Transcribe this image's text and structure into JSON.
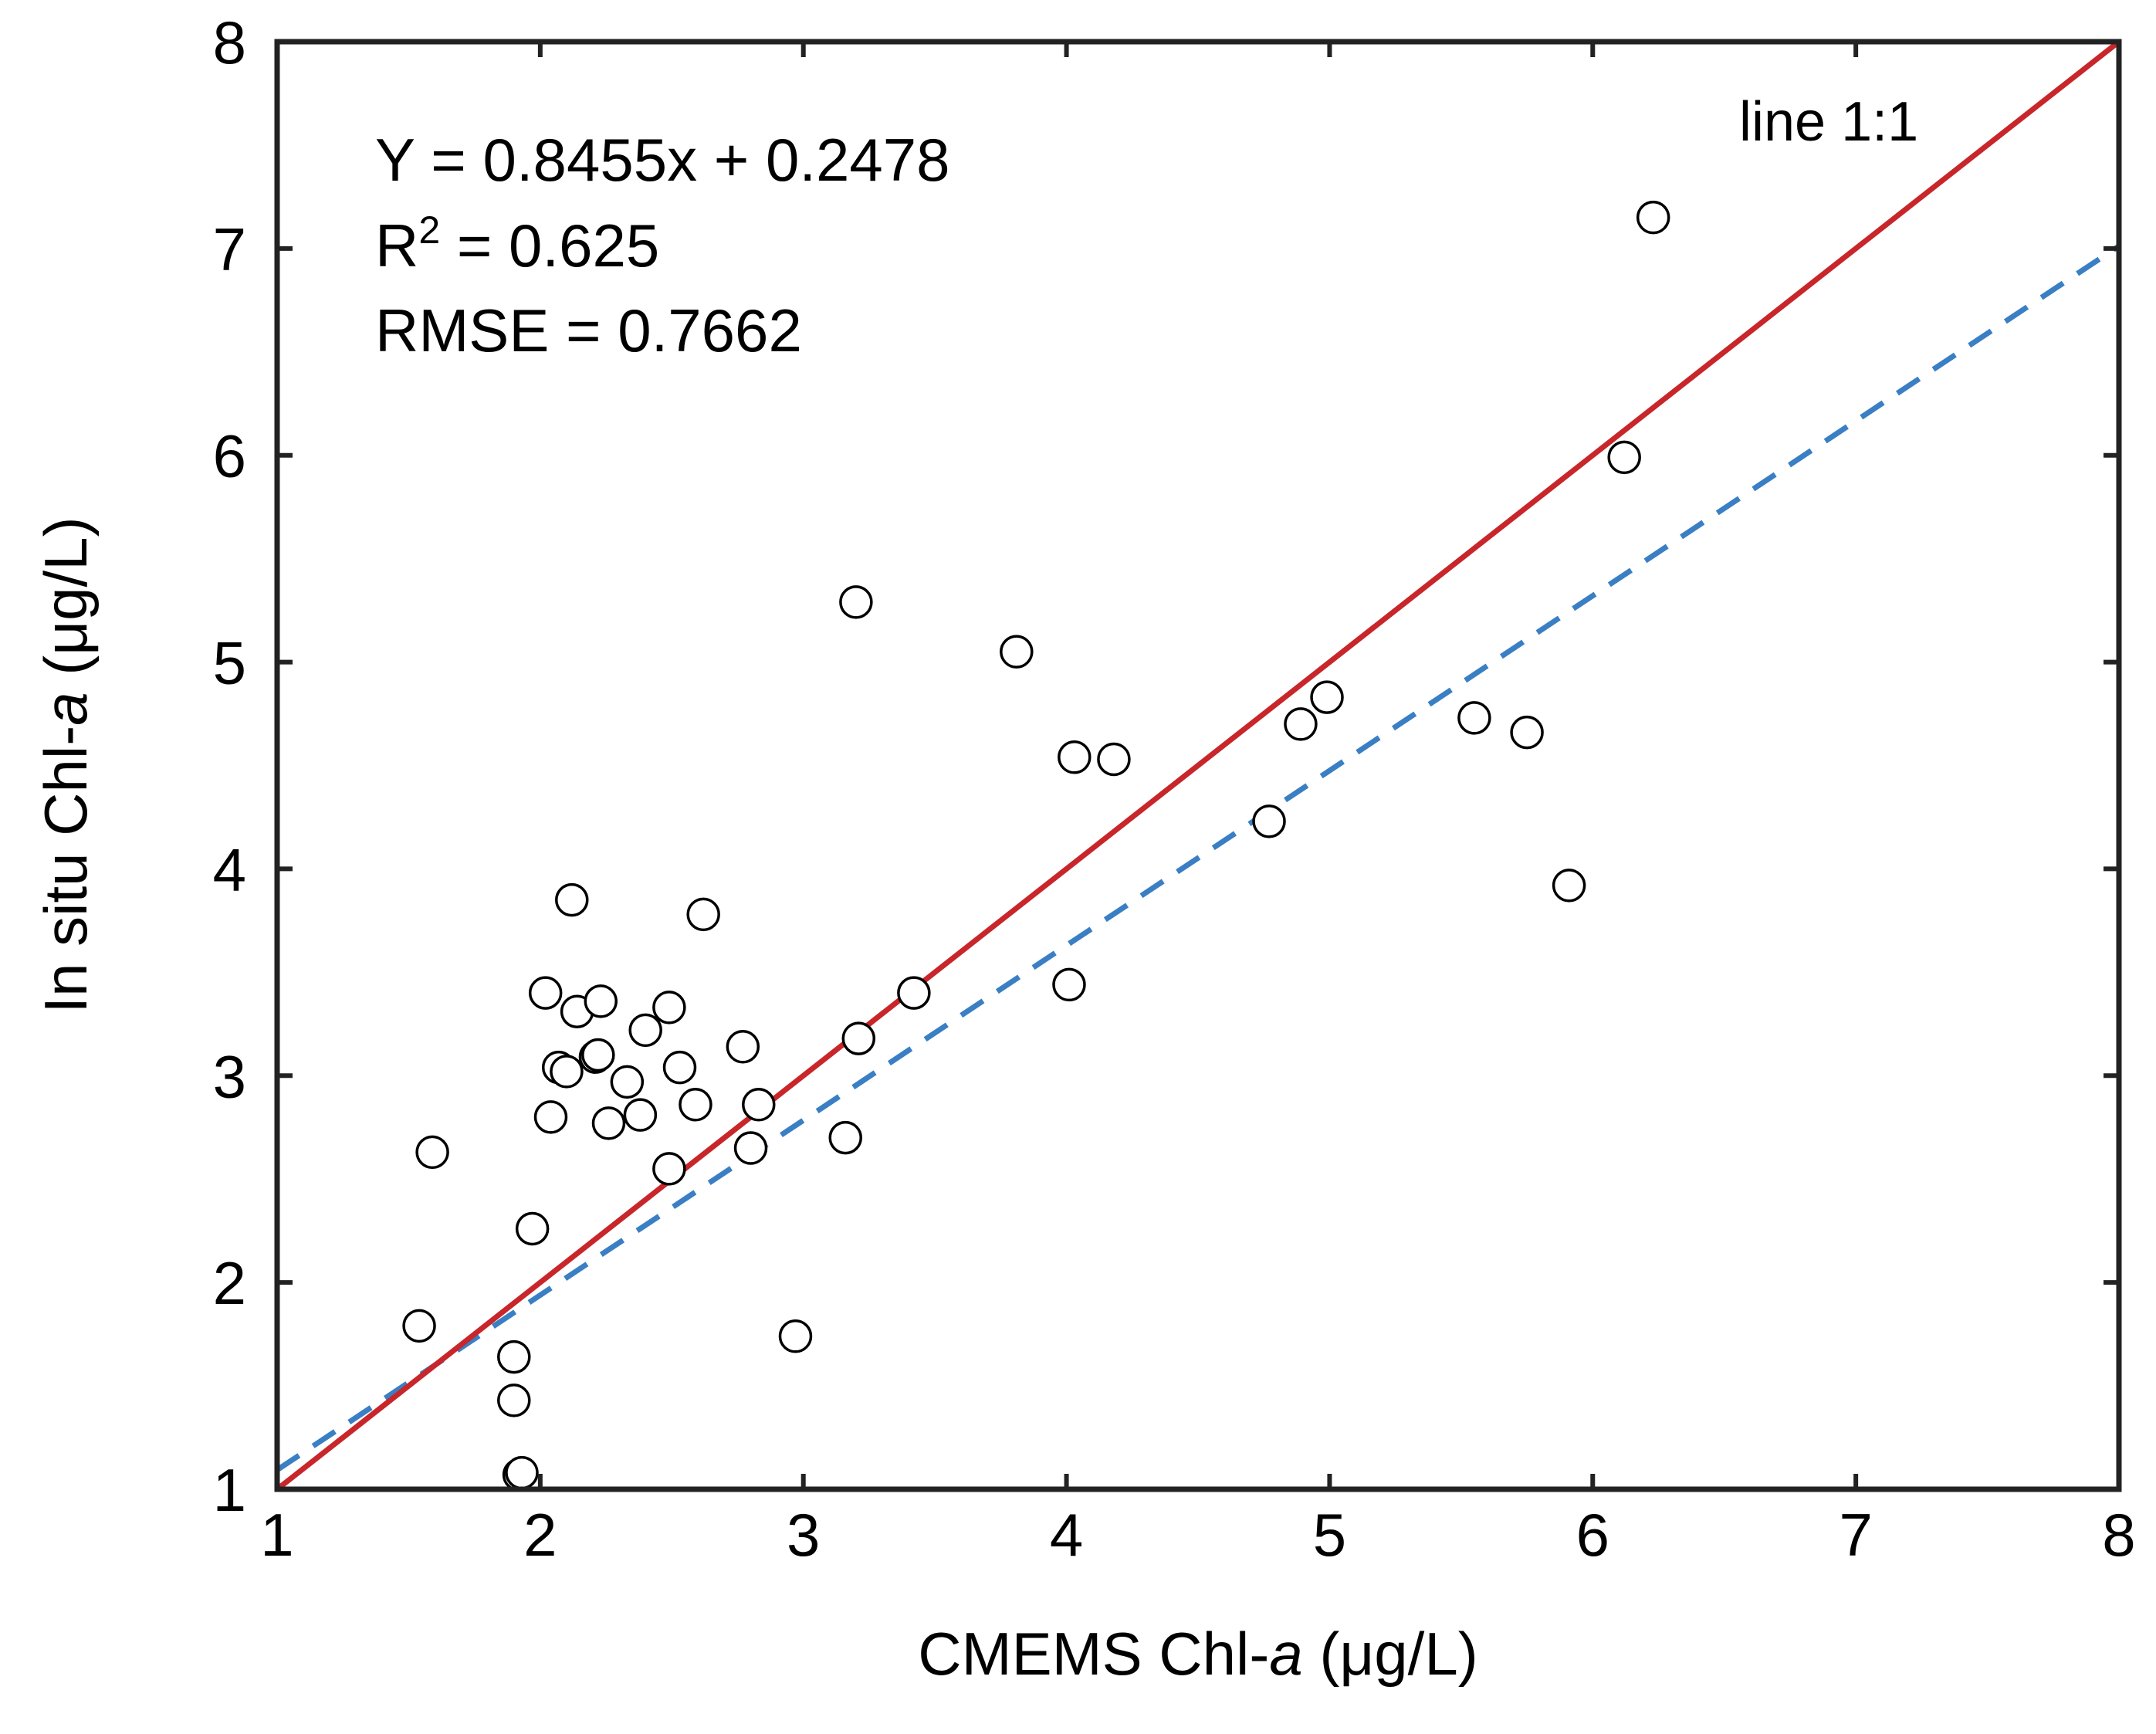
{
  "chart_data": {
    "type": "scatter",
    "xlabel": {
      "prefix": "CMEMS Chl-",
      "italic": "a",
      "suffix": " (μg/L)"
    },
    "ylabel": {
      "prefix": "In situ Chl-",
      "italic": "a",
      "suffix": " (μg/L)"
    },
    "xlim": [
      1,
      8
    ],
    "ylim": [
      1,
      8
    ],
    "xticks": [
      1,
      2,
      3,
      4,
      5,
      6,
      7,
      8
    ],
    "yticks": [
      1,
      2,
      3,
      4,
      5,
      6,
      7,
      8
    ],
    "grid": false,
    "annotations": {
      "equation": "Y = 0.8455x + 0.2478",
      "r2_prefix": "R",
      "r2_sup": "2",
      "r2_value": " = 0.625",
      "rmse": "RMSE = 0.7662",
      "line_label": "line 1:1"
    },
    "lines": [
      {
        "name": "line 1:1",
        "slope": 1,
        "intercept": 0,
        "color": "#c8262a",
        "style": "solid"
      },
      {
        "name": "fit",
        "slope": 0.8455,
        "intercept": 0.2478,
        "color": "#3a7fc4",
        "style": "dashed"
      }
    ],
    "series": [
      {
        "name": "samples",
        "marker": "open-circle",
        "points": [
          [
            1.54,
            1.79
          ],
          [
            1.59,
            2.63
          ],
          [
            1.9,
            1.64
          ],
          [
            1.9,
            1.43
          ],
          [
            1.92,
            1.07
          ],
          [
            1.93,
            1.08
          ],
          [
            1.97,
            2.26
          ],
          [
            2.02,
            3.4
          ],
          [
            2.04,
            2.8
          ],
          [
            2.07,
            3.04
          ],
          [
            2.1,
            3.02
          ],
          [
            2.12,
            3.85
          ],
          [
            2.14,
            3.31
          ],
          [
            2.21,
            3.09
          ],
          [
            2.22,
            3.1
          ],
          [
            2.23,
            3.36
          ],
          [
            2.26,
            2.77
          ],
          [
            2.33,
            2.97
          ],
          [
            2.38,
            2.81
          ],
          [
            2.4,
            3.22
          ],
          [
            2.49,
            3.33
          ],
          [
            2.49,
            2.55
          ],
          [
            2.53,
            3.04
          ],
          [
            2.59,
            2.86
          ],
          [
            2.62,
            3.78
          ],
          [
            2.77,
            3.14
          ],
          [
            2.8,
            2.65
          ],
          [
            2.83,
            2.86
          ],
          [
            2.97,
            1.74
          ],
          [
            3.16,
            2.7
          ],
          [
            3.2,
            5.29
          ],
          [
            3.21,
            3.18
          ],
          [
            3.42,
            3.4
          ],
          [
            3.81,
            5.05
          ],
          [
            4.01,
            3.44
          ],
          [
            4.03,
            4.54
          ],
          [
            4.18,
            4.53
          ],
          [
            4.77,
            4.23
          ],
          [
            4.89,
            4.7
          ],
          [
            4.99,
            4.83
          ],
          [
            5.55,
            4.73
          ],
          [
            5.75,
            4.66
          ],
          [
            5.91,
            3.92
          ],
          [
            6.12,
            5.99
          ],
          [
            6.23,
            7.15
          ]
        ]
      }
    ]
  }
}
